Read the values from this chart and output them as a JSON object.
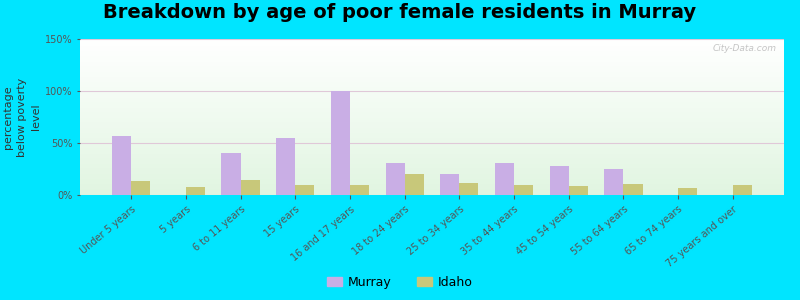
{
  "title": "Breakdown by age of poor female residents in Murray",
  "ylabel": "percentage\nbelow poverty\nlevel",
  "categories": [
    "Under 5 years",
    "5 years",
    "6 to 11 years",
    "15 years",
    "16 and 17 years",
    "18 to 24 years",
    "25 to 34 years",
    "35 to 44 years",
    "45 to 54 years",
    "55 to 64 years",
    "65 to 74 years",
    "75 years and over"
  ],
  "murray_values": [
    57,
    0,
    40,
    55,
    100,
    31,
    20,
    31,
    28,
    25,
    0,
    0
  ],
  "idaho_values": [
    13,
    8,
    14,
    10,
    10,
    20,
    12,
    10,
    9,
    11,
    7,
    10
  ],
  "murray_color": "#c9aee5",
  "idaho_color": "#c8c87a",
  "ylim": [
    0,
    150
  ],
  "yticks": [
    0,
    50,
    100,
    150
  ],
  "ytick_labels": [
    "0%",
    "50%",
    "100%",
    "150%"
  ],
  "outer_bg": "#00e5ff",
  "bar_width": 0.35,
  "watermark": "City-Data.com",
  "legend_murray": "Murray",
  "legend_idaho": "Idaho",
  "title_fontsize": 14,
  "axis_label_fontsize": 8,
  "tick_fontsize": 7,
  "legend_fontsize": 9,
  "grid_color": "#e0c8d8"
}
